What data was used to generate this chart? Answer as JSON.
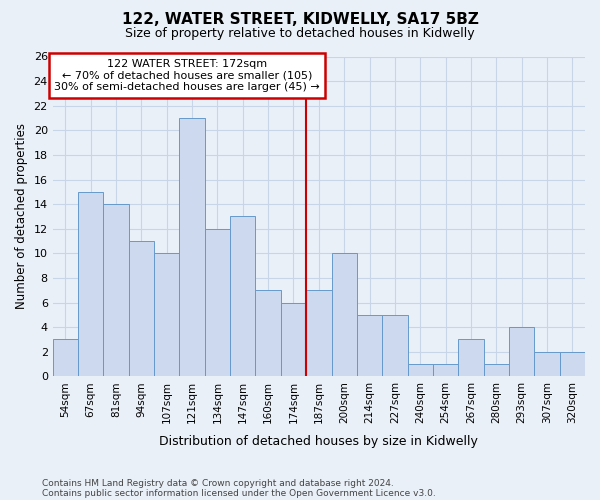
{
  "title1": "122, WATER STREET, KIDWELLY, SA17 5BZ",
  "title2": "Size of property relative to detached houses in Kidwelly",
  "xlabel": "Distribution of detached houses by size in Kidwelly",
  "ylabel": "Number of detached properties",
  "categories": [
    "54sqm",
    "67sqm",
    "81sqm",
    "94sqm",
    "107sqm",
    "121sqm",
    "134sqm",
    "147sqm",
    "160sqm",
    "174sqm",
    "187sqm",
    "200sqm",
    "214sqm",
    "227sqm",
    "240sqm",
    "254sqm",
    "267sqm",
    "280sqm",
    "293sqm",
    "307sqm",
    "320sqm"
  ],
  "values": [
    3,
    15,
    14,
    11,
    10,
    21,
    12,
    13,
    7,
    6,
    7,
    10,
    5,
    5,
    1,
    1,
    3,
    1,
    4,
    2,
    2
  ],
  "bar_color": "#ccd9ee",
  "bar_edge_color": "#6699cc",
  "grid_color": "#c8d4e8",
  "bg_color": "#eaf0f8",
  "reference_line_x": 9.5,
  "reference_line_label": "122 WATER STREET: 172sqm",
  "annotation_line1": "← 70% of detached houses are smaller (105)",
  "annotation_line2": "30% of semi-detached houses are larger (45) →",
  "annotation_box_color": "#ffffff",
  "annotation_box_edge": "#cc0000",
  "ref_line_color": "#cc0000",
  "ylim": [
    0,
    26
  ],
  "yticks": [
    0,
    2,
    4,
    6,
    8,
    10,
    12,
    14,
    16,
    18,
    20,
    22,
    24,
    26
  ],
  "footnote1": "Contains HM Land Registry data © Crown copyright and database right 2024.",
  "footnote2": "Contains public sector information licensed under the Open Government Licence v3.0."
}
